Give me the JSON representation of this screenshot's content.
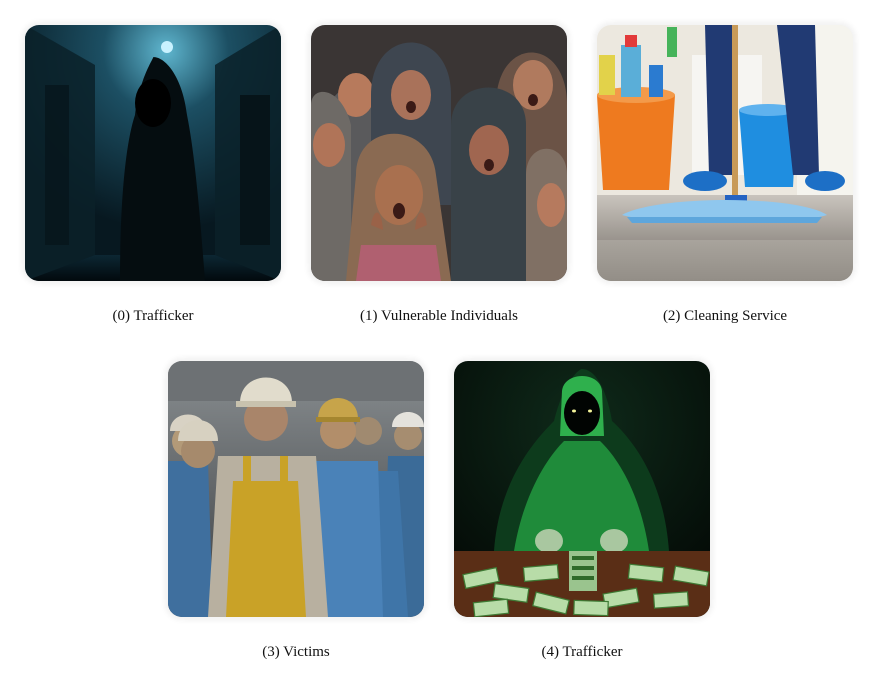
{
  "tiles": [
    {
      "caption": "(0) Trafficker"
    },
    {
      "caption": "(1) Vulnerable Individuals"
    },
    {
      "caption": "(2) Cleaning Service"
    },
    {
      "caption": "(3) Victims"
    },
    {
      "caption": "(4) Trafficker"
    }
  ]
}
